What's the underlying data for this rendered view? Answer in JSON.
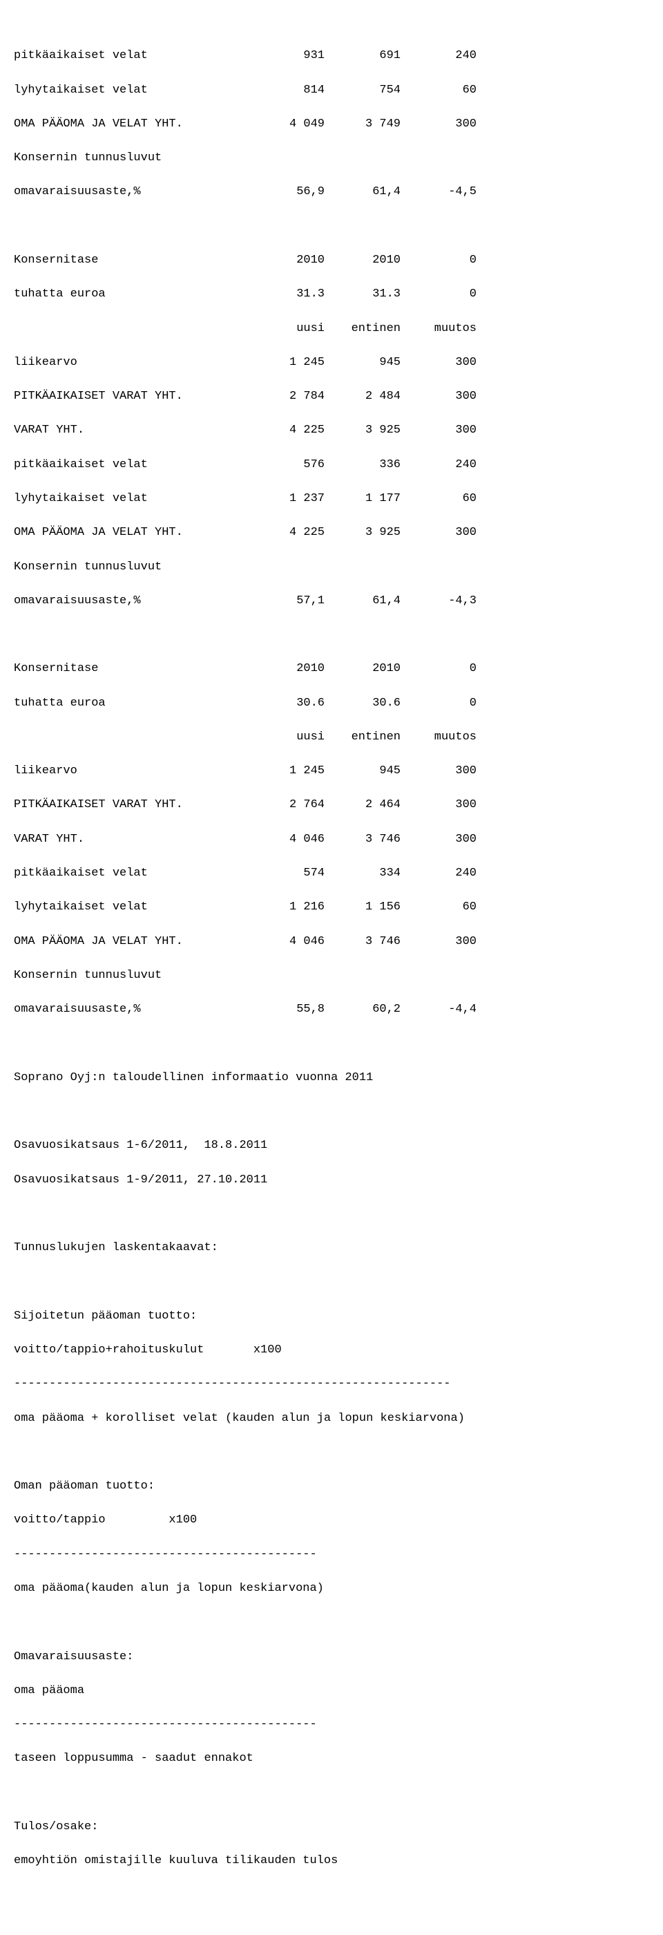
{
  "b1": {
    "r1": {
      "label": "pitkäaikaiset velat",
      "v1": "931",
      "v2": "691",
      "v3": "240"
    },
    "r2": {
      "label": "lyhytaikaiset velat",
      "v1": "814",
      "v2": "754",
      "v3": "60"
    },
    "r3": {
      "label": "OMA PÄÄOMA JA VELAT YHT.",
      "v1": "4 049",
      "v2": "3 749",
      "v3": "300"
    },
    "r4": {
      "label": "Konsernin tunnusluvut"
    },
    "r5": {
      "label": "omavaraisuusaste,%",
      "v1": "56,9",
      "v2": "61,4",
      "v3": "-4,5"
    }
  },
  "b2": {
    "h1": {
      "label": "Konsernitase",
      "v1": "2010",
      "v2": "2010",
      "v3": "0"
    },
    "h2": {
      "label": "tuhatta euroa",
      "v1": "31.3",
      "v2": "31.3",
      "v3": "0"
    },
    "h3": {
      "v1": "uusi",
      "v2": "entinen",
      "v3": "muutos"
    },
    "r1": {
      "label": "liikearvo",
      "v1": "1 245",
      "v2": "945",
      "v3": "300"
    },
    "r2": {
      "label": "PITKÄAIKAISET VARAT YHT.",
      "v1": "2 784",
      "v2": "2 484",
      "v3": "300"
    },
    "r3": {
      "label": "VARAT YHT.",
      "v1": "4 225",
      "v2": "3 925",
      "v3": "300"
    },
    "r4": {
      "label": "pitkäaikaiset velat",
      "v1": "576",
      "v2": "336",
      "v3": "240"
    },
    "r5": {
      "label": "lyhytaikaiset velat",
      "v1": "1 237",
      "v2": "1 177",
      "v3": "60"
    },
    "r6": {
      "label": "OMA PÄÄOMA JA VELAT YHT.",
      "v1": "4 225",
      "v2": "3 925",
      "v3": "300"
    },
    "r7": {
      "label": "Konsernin tunnusluvut"
    },
    "r8": {
      "label": "omavaraisuusaste,%",
      "v1": "57,1",
      "v2": "61,4",
      "v3": "-4,3"
    }
  },
  "b3": {
    "h1": {
      "label": "Konsernitase",
      "v1": "2010",
      "v2": "2010",
      "v3": "0"
    },
    "h2": {
      "label": "tuhatta euroa",
      "v1": "30.6",
      "v2": "30.6",
      "v3": "0"
    },
    "h3": {
      "v1": "uusi",
      "v2": "entinen",
      "v3": "muutos"
    },
    "r1": {
      "label": "liikearvo",
      "v1": "1 245",
      "v2": "945",
      "v3": "300"
    },
    "r2": {
      "label": "PITKÄAIKAISET VARAT YHT.",
      "v1": "2 764",
      "v2": "2 464",
      "v3": "300"
    },
    "r3": {
      "label": "VARAT YHT.",
      "v1": "4 046",
      "v2": "3 746",
      "v3": "300"
    },
    "r4": {
      "label": "pitkäaikaiset velat",
      "v1": "574",
      "v2": "334",
      "v3": "240"
    },
    "r5": {
      "label": "lyhytaikaiset velat",
      "v1": "1 216",
      "v2": "1 156",
      "v3": "60"
    },
    "r6": {
      "label": "OMA PÄÄOMA JA VELAT YHT.",
      "v1": "4 046",
      "v2": "3 746",
      "v3": "300"
    },
    "r7": {
      "label": "Konsernin tunnusluvut"
    },
    "r8": {
      "label": "omavaraisuusaste,%",
      "v1": "55,8",
      "v2": "60,2",
      "v3": "-4,4"
    }
  },
  "txt": {
    "t1": "Soprano Oyj:n taloudellinen informaatio vuonna 2011",
    "t2": "Osavuosikatsaus 1-6/2011,  18.8.2011",
    "t3": "Osavuosikatsaus 1-9/2011, 27.10.2011",
    "t4": "Tunnuslukujen laskentakaavat:",
    "t5": "Sijoitetun pääoman tuotto:",
    "t6": "voitto/tappio+rahoituskulut       x100",
    "t7": "--------------------------------------------------------------",
    "t8": "oma pääoma + korolliset velat (kauden alun ja lopun keskiarvona)",
    "t9": "Oman pääoman tuotto:",
    "t10": "voitto/tappio         x100",
    "t11": "-------------------------------------------",
    "t12": "oma pääoma(kauden alun ja lopun keskiarvona)",
    "t13": "Omavaraisuusaste:",
    "t14": "oma pääoma",
    "t15": "-------------------------------------------",
    "t16": "taseen loppusumma - saadut ennakot",
    "t17": "Tulos/osake:",
    "t18": "emoyhtiön omistajille kuuluva tilikauden tulos"
  }
}
